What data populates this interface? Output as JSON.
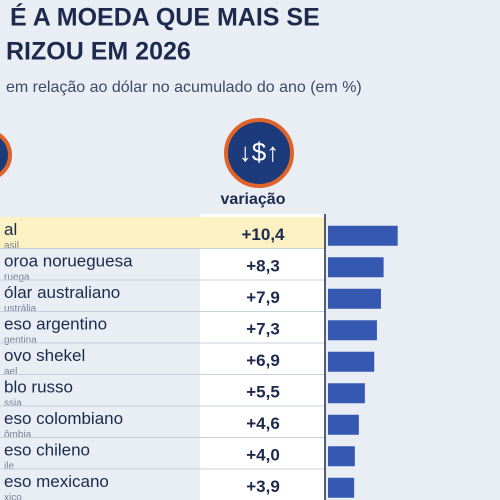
{
  "chart_data": {
    "type": "bar",
    "title_lines": [
      "É A MOEDA QUE MAIS SE",
      "RIZOU EM 2026"
    ],
    "subtitle": "em relação ao dólar no acumulado do ano (em %)",
    "column_header": "variação",
    "icon_label": "↓$↑",
    "categories": [
      "al",
      "oroa norueguesa",
      "ólar australiano",
      "eso argentino",
      "ovo shekel",
      "blo russo",
      "eso colombiano",
      "eso chileno",
      "eso mexicano"
    ],
    "sublabels": [
      "asil",
      "ruega",
      "ustrália",
      "gentina",
      "ael",
      "ssia",
      "ômbia",
      "ile",
      "xico"
    ],
    "values": [
      10.4,
      8.3,
      7.9,
      7.3,
      6.9,
      5.5,
      4.6,
      4.0,
      3.9
    ],
    "value_labels": [
      "+10,4",
      "+8,3",
      "+7,9",
      "+7,3",
      "+6,9",
      "+5,5",
      "+4,6",
      "+4,0",
      "+3,9"
    ],
    "color": "#3558b0",
    "highlight_color": "#fbf1c2"
  }
}
